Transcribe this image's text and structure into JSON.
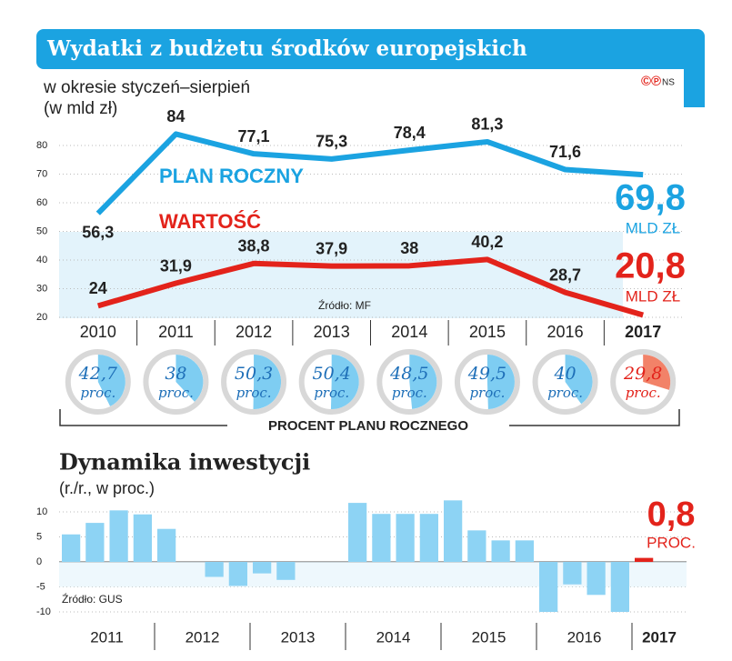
{
  "header": {
    "title": "Wydatki z budżetu środków europejskich",
    "subtitle": "w okresie styczeń–sierpień",
    "unit": "(w mld zł)",
    "logo": "©℗",
    "brand": "NS"
  },
  "chart_data": [
    {
      "type": "line",
      "categories": [
        "2010",
        "2011",
        "2012",
        "2013",
        "2014",
        "2015",
        "2016",
        "2017"
      ],
      "series": [
        {
          "name": "PLAN ROCZNY",
          "color": "#1ba3e1",
          "values": [
            56.3,
            84,
            77.1,
            75.3,
            78.4,
            81.3,
            71.6,
            69.8
          ],
          "value_labels": [
            "56,3",
            "84",
            "77,1",
            "75,3",
            "78,4",
            "81,3",
            "71,6",
            "69,8"
          ],
          "end_unit": "MLD ZŁ"
        },
        {
          "name": "WARTOŚĆ",
          "color": "#e3231b",
          "values": [
            24,
            31.9,
            38.8,
            37.9,
            38,
            40.2,
            28.7,
            20.8
          ],
          "value_labels": [
            "24",
            "31,9",
            "38,8",
            "37,9",
            "38",
            "40,2",
            "28,7",
            "20,8"
          ],
          "end_unit": "MLD ZŁ"
        }
      ],
      "ylim": [
        20,
        87
      ],
      "yticks": [
        20,
        30,
        40,
        50,
        60,
        70,
        80
      ],
      "grid": true,
      "source": "Źródło: MF"
    },
    {
      "type": "pie",
      "caption": "PROCENT PLANU ROCZNEGO",
      "values": [
        42.7,
        38,
        50.3,
        50.4,
        48.5,
        49.5,
        40,
        29.8
      ],
      "value_labels": [
        "42,7",
        "38",
        "50,3",
        "50,4",
        "48,5",
        "49,5",
        "40",
        "29,8"
      ],
      "unit": "proc.",
      "color": "#7ecdf2",
      "highlight_color": "#f28268"
    },
    {
      "type": "bar",
      "title": "Dynamika inwestycji",
      "subtitle": "(r./r., w proc.)",
      "source": "Źródło: GUS",
      "year_labels": [
        "2011",
        "2012",
        "2013",
        "2014",
        "2015",
        "2016",
        "2017"
      ],
      "values": [
        5.5,
        7.8,
        10.3,
        9.5,
        6.6,
        0,
        -3,
        -4.8,
        -2.3,
        -3.6,
        0,
        0,
        11.8,
        9.6,
        9.6,
        9.6,
        12.3,
        6.3,
        4.3,
        4.3,
        -10,
        -4.5,
        -6.6,
        -10,
        0.8
      ],
      "last_label": "0,8",
      "end_unit": "PROC.",
      "color": "#8dd3f4",
      "highlight_color": "#e3231b",
      "ylim": [
        -10.5,
        12.5
      ],
      "yticks": [
        10,
        5,
        0,
        -5,
        -10
      ],
      "grid": true
    }
  ]
}
